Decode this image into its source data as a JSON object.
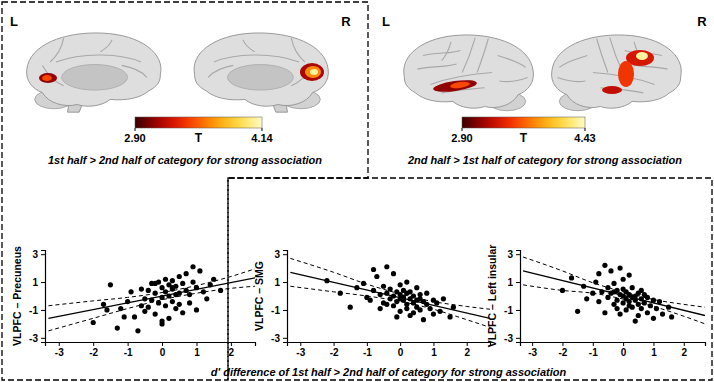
{
  "chart_data": [
    {
      "type": "brain_map",
      "title": "1st half > 2nd half of category for strong association",
      "hemisphere_labels": [
        "L",
        "R"
      ],
      "colorbar": {
        "label": "T",
        "range": [
          2.9,
          4.14
        ],
        "ticks": [
          {
            "value": 2.9,
            "label": "2.90"
          },
          {
            "value": 4.14,
            "label": "4.14"
          }
        ]
      }
    },
    {
      "type": "brain_map",
      "title": "2nd half > 1st half of category for strong association",
      "hemisphere_labels": [
        "L",
        "R"
      ],
      "colorbar": {
        "label": "T",
        "range": [
          2.9,
          4.43
        ],
        "ticks": [
          {
            "value": 2.9,
            "label": "2.90"
          },
          {
            "value": 4.43,
            "label": "4.43"
          }
        ]
      }
    },
    {
      "type": "scatter",
      "ylabel": "VLPFC – Precuneus",
      "xlim": [
        -3.4,
        2.7
      ],
      "ylim": [
        -3.3,
        3.3
      ],
      "xticks": [
        -3,
        -2,
        -1,
        0,
        1,
        2
      ],
      "yticks": [
        -3,
        -1,
        1,
        3
      ],
      "series": [
        {
          "type": "scatter",
          "marker": "circle",
          "color": "#000000",
          "x": [
            -2.0,
            -1.7,
            -1.6,
            -1.5,
            -1.3,
            -1.2,
            -1.0,
            -0.9,
            -0.8,
            -0.7,
            -0.6,
            -0.5,
            -0.5,
            -0.4,
            -0.4,
            -0.3,
            -0.3,
            -0.2,
            -0.2,
            -0.1,
            -0.1,
            0.0,
            0.0,
            0.0,
            0.1,
            0.1,
            0.1,
            0.2,
            0.2,
            0.2,
            0.3,
            0.3,
            0.3,
            0.4,
            0.4,
            0.5,
            0.5,
            0.5,
            0.6,
            0.6,
            0.7,
            0.7,
            0.8,
            0.8,
            0.9,
            1.0,
            1.0,
            1.1,
            1.2,
            1.3,
            1.4,
            1.5,
            1.7,
            -0.6,
            -0.2,
            0.4,
            0.0,
            -1.1,
            0.9,
            0.3
          ],
          "values": [
            -1.9,
            -0.6,
            -1.0,
            0.8,
            -2.3,
            -0.9,
            -0.4,
            0.3,
            -1.5,
            -2.5,
            0.5,
            -0.2,
            -1.1,
            0.4,
            -0.8,
            0.9,
            -0.3,
            0.2,
            -1.3,
            1.0,
            -0.5,
            0.6,
            -0.1,
            -2.0,
            1.2,
            0.3,
            -0.7,
            0.8,
            0.0,
            -1.6,
            1.1,
            0.5,
            -0.4,
            0.7,
            -0.9,
            1.4,
            0.2,
            -0.6,
            0.9,
            -1.2,
            0.4,
            1.6,
            0.1,
            -0.5,
            1.0,
            0.6,
            -1.0,
            1.8,
            0.3,
            -0.2,
            0.8,
            1.2,
            0.4,
            -0.7,
            0.9,
            0.1,
            -1.8,
            -1.5,
            2.1,
            0.6
          ]
        },
        {
          "type": "line",
          "line_style": "solid",
          "color": "#000000",
          "x": [
            -3.3,
            2.7
          ],
          "values": [
            -1.6,
            1.3
          ]
        },
        {
          "type": "line",
          "line_style": "dashed",
          "color": "#000000",
          "x": [
            -3.3,
            -2,
            -1,
            0,
            1,
            2,
            2.7
          ],
          "values": [
            -0.7,
            -0.35,
            -0.1,
            0.25,
            0.75,
            1.4,
            1.95
          ]
        },
        {
          "type": "line",
          "line_style": "dashed",
          "color": "#000000",
          "x": [
            -3.3,
            -2,
            -1,
            0,
            1,
            2,
            2.7
          ],
          "values": [
            -2.5,
            -1.6,
            -0.9,
            -0.27,
            0.2,
            0.55,
            0.7
          ]
        }
      ]
    },
    {
      "type": "scatter",
      "ylabel": "VLPFC – SMG",
      "xlabel": "d' difference of 1st half > 2nd half of category for strong association",
      "xlim": [
        -3.4,
        2.7
      ],
      "ylim": [
        -3.3,
        3.3
      ],
      "xticks": [
        -3,
        -2,
        -1,
        0,
        1,
        2
      ],
      "yticks": [
        -3,
        -1,
        1,
        3
      ],
      "series": [
        {
          "type": "scatter",
          "marker": "circle",
          "color": "#000000",
          "x": [
            -2.2,
            -1.8,
            -1.5,
            -1.3,
            -1.1,
            -0.9,
            -0.8,
            -0.7,
            -0.6,
            -0.5,
            -0.5,
            -0.4,
            -0.4,
            -0.3,
            -0.3,
            -0.2,
            -0.2,
            -0.1,
            -0.1,
            0.0,
            0.0,
            0.0,
            0.1,
            0.1,
            0.1,
            0.2,
            0.2,
            0.2,
            0.3,
            0.3,
            0.3,
            0.4,
            0.4,
            0.5,
            0.5,
            0.5,
            0.6,
            0.6,
            0.7,
            0.7,
            0.8,
            0.8,
            0.9,
            1.0,
            1.0,
            1.1,
            1.2,
            1.3,
            1.5,
            -0.6,
            -0.2,
            0.4,
            -1.0,
            0.0,
            -0.8,
            1.6,
            0.6,
            -0.1,
            0.2,
            -0.4
          ],
          "values": [
            1.1,
            0.2,
            -0.8,
            0.6,
            0.9,
            -0.3,
            0.4,
            1.4,
            0.1,
            -0.5,
            0.7,
            0.2,
            2.1,
            -0.2,
            0.5,
            0.0,
            1.6,
            -0.4,
            0.3,
            0.1,
            -0.2,
            -1.1,
            0.4,
            -0.3,
            -0.1,
            0.2,
            -0.6,
            1.0,
            -0.2,
            -1.4,
            0.3,
            -0.5,
            0.0,
            -0.8,
            0.6,
            -0.3,
            -1.0,
            0.1,
            -0.4,
            -1.7,
            -0.6,
            0.2,
            -0.9,
            -0.3,
            -1.3,
            -0.5,
            -1.1,
            -0.2,
            -1.5,
            -0.9,
            -0.7,
            -1.2,
            -0.1,
            0.8,
            1.9,
            -0.8,
            -0.2,
            -1.5,
            -0.9,
            -0.6
          ]
        },
        {
          "type": "line",
          "line_style": "solid",
          "color": "#000000",
          "x": [
            -3.3,
            2.7
          ],
          "values": [
            1.7,
            -1.6
          ]
        },
        {
          "type": "line",
          "line_style": "dashed",
          "color": "#000000",
          "x": [
            -3.3,
            -2,
            -1,
            0,
            1,
            2,
            2.7
          ],
          "values": [
            2.7,
            1.7,
            0.85,
            0.15,
            -0.4,
            -0.75,
            -0.95
          ]
        },
        {
          "type": "line",
          "line_style": "dashed",
          "color": "#000000",
          "x": [
            -3.3,
            -2,
            -1,
            0,
            1,
            2,
            2.7
          ],
          "values": [
            0.7,
            0.3,
            0.0,
            -0.38,
            -0.95,
            -1.7,
            -2.25
          ]
        }
      ]
    },
    {
      "type": "scatter",
      "ylabel": "VLPFC – Left insular",
      "xlim": [
        -3.4,
        2.7
      ],
      "ylim": [
        -3.3,
        3.3
      ],
      "xticks": [
        -3,
        -2,
        -1,
        0,
        1,
        2
      ],
      "yticks": [
        -3,
        -1,
        1,
        3
      ],
      "series": [
        {
          "type": "scatter",
          "marker": "circle",
          "color": "#000000",
          "x": [
            -2.0,
            -1.7,
            -1.5,
            -1.3,
            -1.2,
            -0.9,
            -0.8,
            -0.7,
            -0.6,
            -0.5,
            -0.5,
            -0.4,
            -0.4,
            -0.3,
            -0.3,
            -0.2,
            -0.2,
            -0.1,
            -0.1,
            0.0,
            0.0,
            0.0,
            0.1,
            0.1,
            0.1,
            0.2,
            0.2,
            0.2,
            0.3,
            0.3,
            0.3,
            0.4,
            0.4,
            0.5,
            0.5,
            0.5,
            0.6,
            0.6,
            0.7,
            0.7,
            0.8,
            0.8,
            0.9,
            1.0,
            1.0,
            1.1,
            1.2,
            1.3,
            1.5,
            -0.6,
            -0.2,
            0.4,
            -1.0,
            0.0,
            -0.8,
            1.6,
            0.6,
            -0.1,
            0.2,
            -0.3
          ],
          "values": [
            0.4,
            1.3,
            -1.1,
            0.7,
            -0.2,
            1.0,
            -0.4,
            0.3,
            2.2,
            0.6,
            -0.1,
            1.8,
            0.2,
            -0.6,
            0.9,
            0.4,
            -0.3,
            0.1,
            2.0,
            0.0,
            -0.5,
            0.5,
            -0.2,
            0.3,
            -1.0,
            0.1,
            -0.4,
            1.5,
            -0.1,
            -0.8,
            0.6,
            -0.3,
            0.0,
            -0.6,
            0.2,
            -1.4,
            -0.2,
            -0.9,
            0.1,
            -0.5,
            -1.2,
            -0.1,
            -0.7,
            -0.3,
            -1.6,
            -0.9,
            -0.4,
            -1.3,
            -0.8,
            -1.2,
            -0.9,
            -1.8,
            0.2,
            1.2,
            1.6,
            -1.5,
            0.4,
            -1.3,
            -0.7,
            0.3
          ]
        },
        {
          "type": "line",
          "line_style": "solid",
          "color": "#000000",
          "x": [
            -3.3,
            2.7
          ],
          "values": [
            1.8,
            -1.4
          ]
        },
        {
          "type": "line",
          "line_style": "dashed",
          "color": "#000000",
          "x": [
            -3.3,
            -2,
            -1,
            0,
            1,
            2,
            2.7
          ],
          "values": [
            2.8,
            1.8,
            0.95,
            0.3,
            -0.25,
            -0.6,
            -0.8
          ]
        },
        {
          "type": "line",
          "line_style": "dashed",
          "color": "#000000",
          "x": [
            -3.3,
            -2,
            -1,
            0,
            1,
            2,
            2.7
          ],
          "values": [
            0.8,
            0.4,
            0.2,
            -0.22,
            -0.75,
            -1.45,
            -2.0
          ]
        }
      ]
    }
  ]
}
